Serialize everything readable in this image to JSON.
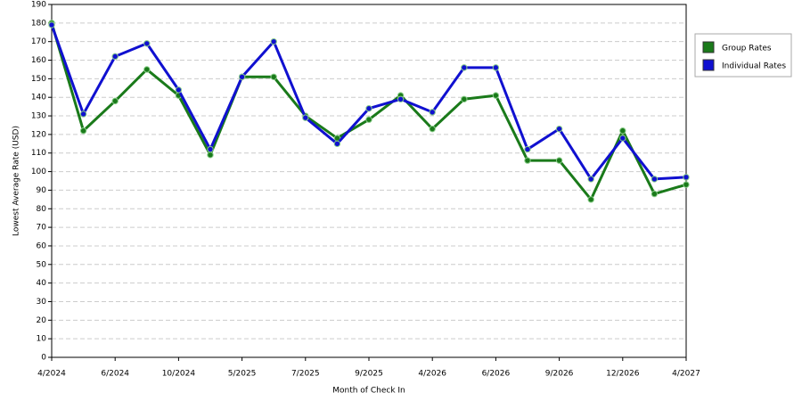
{
  "chart_data": {
    "type": "line",
    "x_label": "Month of Check In",
    "y_label": "Lowest Average Rate (USD)",
    "categories": [
      "4/2024",
      null,
      "6/2024",
      null,
      "10/2024",
      null,
      "5/2025",
      null,
      "7/2025",
      null,
      "9/2025",
      null,
      "4/2026",
      null,
      "6/2026",
      null,
      "9/2026",
      null,
      "12/2026",
      null,
      "4/2027"
    ],
    "series": [
      {
        "name": "Group Rates",
        "color": "#1a7a1a",
        "values": [
          180,
          122,
          138,
          155,
          141,
          109,
          151,
          151,
          130,
          118,
          128,
          141,
          123,
          139,
          141,
          106,
          106,
          85,
          122,
          88,
          93
        ]
      },
      {
        "name": "Individual Rates",
        "color": "#1010d0",
        "values": [
          179,
          131,
          162,
          169,
          144,
          112,
          151,
          170,
          129,
          115,
          134,
          139,
          132,
          156,
          156,
          112,
          123,
          96,
          118,
          96,
          97
        ]
      }
    ],
    "ylim": [
      0,
      190
    ],
    "yticks": [
      0,
      10,
      20,
      30,
      40,
      50,
      60,
      70,
      80,
      90,
      100,
      110,
      120,
      130,
      140,
      150,
      160,
      170,
      180,
      190
    ],
    "grid": true,
    "legend_position": "right"
  }
}
